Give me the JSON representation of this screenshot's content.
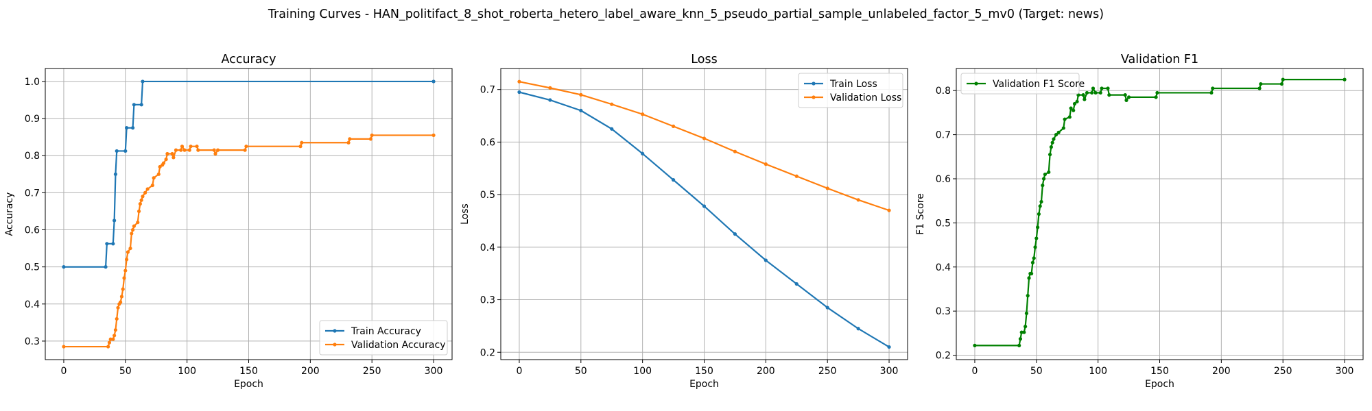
{
  "figure": {
    "suptitle": "Training Curves - HAN_politifact_8_shot_roberta_hetero_label_aware_knn_5_pseudo_partial_sample_unlabeled_factor_5_mv0 (Target: news)"
  },
  "colors": {
    "blue": "#1f77b4",
    "orange": "#ff7f0e",
    "green": "#008000",
    "grid": "#b0b0b0"
  },
  "chart_data": [
    {
      "type": "line",
      "title": "Accuracy",
      "xlabel": "Epoch",
      "ylabel": "Accuracy",
      "xlim": [
        -15,
        315
      ],
      "ylim": [
        0.25,
        1.035
      ],
      "xticks": [
        0,
        50,
        100,
        150,
        200,
        250,
        300
      ],
      "yticks": [
        0.3,
        0.4,
        0.5,
        0.6,
        0.7,
        0.8,
        0.9,
        1.0
      ],
      "ytick_decimals": 1,
      "grid": true,
      "legend_position": "lower-right",
      "series": [
        {
          "name": "Train Accuracy",
          "color": "#1f77b4",
          "points": [
            [
              0,
              0.5
            ],
            [
              34,
              0.5
            ],
            [
              35,
              0.5625
            ],
            [
              40,
              0.5625
            ],
            [
              41,
              0.625
            ],
            [
              42,
              0.75
            ],
            [
              43,
              0.8125
            ],
            [
              50,
              0.8125
            ],
            [
              51,
              0.875
            ],
            [
              56,
              0.875
            ],
            [
              57,
              0.9375
            ],
            [
              63,
              0.9375
            ],
            [
              64,
              1.0
            ],
            [
              300,
              1.0
            ]
          ]
        },
        {
          "name": "Validation Accuracy",
          "color": "#ff7f0e",
          "points": [
            [
              0,
              0.285
            ],
            [
              36,
              0.285
            ],
            [
              37,
              0.296
            ],
            [
              38,
              0.305
            ],
            [
              40,
              0.305
            ],
            [
              41,
              0.315
            ],
            [
              42,
              0.33
            ],
            [
              43,
              0.36
            ],
            [
              44,
              0.39
            ],
            [
              45,
              0.4
            ],
            [
              46,
              0.405
            ],
            [
              47,
              0.42
            ],
            [
              48,
              0.44
            ],
            [
              49,
              0.47
            ],
            [
              50,
              0.49
            ],
            [
              51,
              0.52
            ],
            [
              52,
              0.54
            ],
            [
              54,
              0.55
            ],
            [
              55,
              0.59
            ],
            [
              56,
              0.6
            ],
            [
              57,
              0.61
            ],
            [
              60,
              0.62
            ],
            [
              61,
              0.65
            ],
            [
              62,
              0.67
            ],
            [
              63,
              0.68
            ],
            [
              64,
              0.69
            ],
            [
              66,
              0.7
            ],
            [
              68,
              0.71
            ],
            [
              72,
              0.72
            ],
            [
              73,
              0.74
            ],
            [
              77,
              0.75
            ],
            [
              78,
              0.77
            ],
            [
              80,
              0.775
            ],
            [
              81,
              0.78
            ],
            [
              83,
              0.79
            ],
            [
              84,
              0.805
            ],
            [
              88,
              0.805
            ],
            [
              89,
              0.795
            ],
            [
              91,
              0.815
            ],
            [
              95,
              0.815
            ],
            [
              96,
              0.825
            ],
            [
              98,
              0.815
            ],
            [
              102,
              0.815
            ],
            [
              103,
              0.825
            ],
            [
              108,
              0.825
            ],
            [
              109,
              0.815
            ],
            [
              122,
              0.815
            ],
            [
              123,
              0.805
            ],
            [
              125,
              0.815
            ],
            [
              147,
              0.815
            ],
            [
              148,
              0.825
            ],
            [
              192,
              0.825
            ],
            [
              193,
              0.835
            ],
            [
              231,
              0.835
            ],
            [
              232,
              0.845
            ],
            [
              249,
              0.845
            ],
            [
              250,
              0.855
            ],
            [
              300,
              0.855
            ]
          ]
        }
      ]
    },
    {
      "type": "line",
      "title": "Loss",
      "xlabel": "Epoch",
      "ylabel": "Loss",
      "xlim": [
        -15,
        315
      ],
      "ylim": [
        0.186,
        0.74
      ],
      "xticks": [
        0,
        50,
        100,
        150,
        200,
        250,
        300
      ],
      "yticks": [
        0.2,
        0.3,
        0.4,
        0.5,
        0.6,
        0.7
      ],
      "ytick_decimals": 1,
      "grid": true,
      "legend_position": "upper-right",
      "series": [
        {
          "name": "Train Loss",
          "color": "#1f77b4",
          "points": [
            [
              0,
              0.695
            ],
            [
              25,
              0.68
            ],
            [
              50,
              0.66
            ],
            [
              75,
              0.625
            ],
            [
              100,
              0.578
            ],
            [
              125,
              0.528
            ],
            [
              150,
              0.478
            ],
            [
              175,
              0.425
            ],
            [
              200,
              0.375
            ],
            [
              225,
              0.33
            ],
            [
              250,
              0.285
            ],
            [
              275,
              0.245
            ],
            [
              300,
              0.21
            ]
          ]
        },
        {
          "name": "Validation Loss",
          "color": "#ff7f0e",
          "points": [
            [
              0,
              0.715
            ],
            [
              25,
              0.703
            ],
            [
              50,
              0.69
            ],
            [
              75,
              0.672
            ],
            [
              100,
              0.653
            ],
            [
              125,
              0.63
            ],
            [
              150,
              0.607
            ],
            [
              175,
              0.582
            ],
            [
              200,
              0.558
            ],
            [
              225,
              0.535
            ],
            [
              250,
              0.512
            ],
            [
              275,
              0.49
            ],
            [
              300,
              0.47
            ]
          ]
        }
      ]
    },
    {
      "type": "line",
      "title": "Validation F1",
      "xlabel": "Epoch",
      "ylabel": "F1 Score",
      "xlim": [
        -15,
        315
      ],
      "ylim": [
        0.19,
        0.85
      ],
      "xticks": [
        0,
        50,
        100,
        150,
        200,
        250,
        300
      ],
      "yticks": [
        0.2,
        0.3,
        0.4,
        0.5,
        0.6,
        0.7,
        0.8
      ],
      "ytick_decimals": 1,
      "grid": true,
      "legend_position": "upper-left",
      "series": [
        {
          "name": "Validation F1 Score",
          "color": "#008000",
          "points": [
            [
              0,
              0.222
            ],
            [
              36,
              0.222
            ],
            [
              37,
              0.237
            ],
            [
              38,
              0.252
            ],
            [
              40,
              0.252
            ],
            [
              41,
              0.265
            ],
            [
              42,
              0.295
            ],
            [
              43,
              0.335
            ],
            [
              44,
              0.375
            ],
            [
              45,
              0.385
            ],
            [
              46,
              0.385
            ],
            [
              47,
              0.41
            ],
            [
              48,
              0.42
            ],
            [
              49,
              0.445
            ],
            [
              50,
              0.465
            ],
            [
              51,
              0.49
            ],
            [
              52,
              0.52
            ],
            [
              53,
              0.538
            ],
            [
              54,
              0.548
            ],
            [
              55,
              0.585
            ],
            [
              56,
              0.6
            ],
            [
              57,
              0.61
            ],
            [
              60,
              0.615
            ],
            [
              61,
              0.655
            ],
            [
              62,
              0.672
            ],
            [
              63,
              0.682
            ],
            [
              64,
              0.69
            ],
            [
              66,
              0.7
            ],
            [
              68,
              0.705
            ],
            [
              72,
              0.715
            ],
            [
              73,
              0.735
            ],
            [
              77,
              0.74
            ],
            [
              78,
              0.76
            ],
            [
              80,
              0.755
            ],
            [
              81,
              0.77
            ],
            [
              83,
              0.775
            ],
            [
              84,
              0.79
            ],
            [
              88,
              0.79
            ],
            [
              89,
              0.78
            ],
            [
              91,
              0.795
            ],
            [
              95,
              0.795
            ],
            [
              96,
              0.805
            ],
            [
              98,
              0.795
            ],
            [
              102,
              0.795
            ],
            [
              103,
              0.805
            ],
            [
              108,
              0.805
            ],
            [
              109,
              0.79
            ],
            [
              122,
              0.79
            ],
            [
              123,
              0.778
            ],
            [
              125,
              0.785
            ],
            [
              147,
              0.785
            ],
            [
              148,
              0.795
            ],
            [
              192,
              0.795
            ],
            [
              193,
              0.805
            ],
            [
              231,
              0.805
            ],
            [
              232,
              0.815
            ],
            [
              249,
              0.815
            ],
            [
              250,
              0.825
            ],
            [
              300,
              0.825
            ]
          ]
        }
      ]
    }
  ]
}
